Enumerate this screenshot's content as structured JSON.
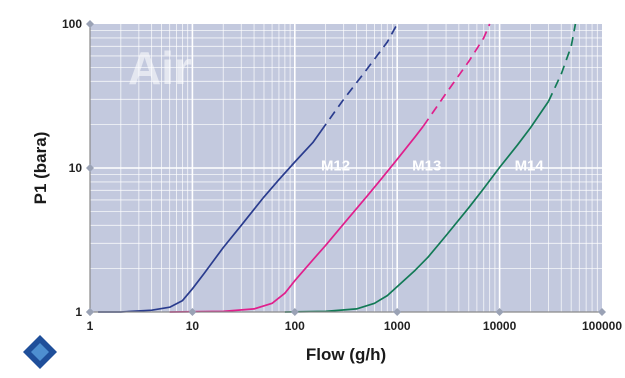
{
  "chart_data": {
    "type": "line",
    "title": "",
    "watermark_text": "Air",
    "xlabel": "Flow (g/h)",
    "ylabel": "P1 (bara)",
    "xscale": "log",
    "yscale": "log",
    "xlim": [
      1,
      100000
    ],
    "ylim": [
      1,
      100
    ],
    "grid": true,
    "legend": "none (curves labeled inline)",
    "x_ticks": [
      "1",
      "10",
      "100",
      "1000",
      "10000",
      "100000"
    ],
    "y_ticks": [
      "1",
      "10",
      "100"
    ],
    "colors": {
      "plot_background": "#c3c9de",
      "grid": "#ffffff",
      "axis": "#8a8a8a",
      "tick_marker": "#9aa2b5",
      "logo_outer": "#1f4f9a",
      "logo_inner": "#4e8fd0"
    },
    "series": [
      {
        "name": "M12",
        "color": "#2a3c8e",
        "solid": [
          [
            1.2,
            1.0
          ],
          [
            2,
            1.0
          ],
          [
            4,
            1.03
          ],
          [
            6,
            1.08
          ],
          [
            8,
            1.2
          ],
          [
            10,
            1.45
          ],
          [
            13,
            1.85
          ],
          [
            20,
            2.8
          ],
          [
            30,
            4.0
          ],
          [
            50,
            6.3
          ],
          [
            70,
            8.3
          ],
          [
            100,
            11
          ],
          [
            150,
            15
          ],
          [
            180,
            18
          ]
        ],
        "dashed": [
          [
            180,
            18
          ],
          [
            300,
            30
          ],
          [
            500,
            48
          ],
          [
            800,
            75
          ],
          [
            1000,
            100
          ]
        ]
      },
      {
        "name": "M13",
        "color": "#e01f8c",
        "solid": [
          [
            6,
            1.0
          ],
          [
            20,
            1.01
          ],
          [
            40,
            1.05
          ],
          [
            60,
            1.15
          ],
          [
            80,
            1.35
          ],
          [
            100,
            1.65
          ],
          [
            150,
            2.3
          ],
          [
            200,
            2.9
          ],
          [
            300,
            4.1
          ],
          [
            500,
            6.3
          ],
          [
            700,
            8.4
          ],
          [
            1000,
            11.5
          ],
          [
            1500,
            16.5
          ],
          [
            1800,
            19.5
          ]
        ],
        "dashed": [
          [
            1800,
            19.5
          ],
          [
            3000,
            33
          ],
          [
            5000,
            55
          ],
          [
            7000,
            80
          ],
          [
            8000,
            100
          ]
        ]
      },
      {
        "name": "M14",
        "color": "#127a56",
        "solid": [
          [
            80,
            1.0
          ],
          [
            200,
            1.01
          ],
          [
            400,
            1.05
          ],
          [
            600,
            1.15
          ],
          [
            800,
            1.3
          ],
          [
            1000,
            1.5
          ],
          [
            1500,
            1.95
          ],
          [
            2000,
            2.4
          ],
          [
            3000,
            3.4
          ],
          [
            5000,
            5.3
          ],
          [
            7000,
            7.2
          ],
          [
            10000,
            10.1
          ],
          [
            15000,
            14.5
          ],
          [
            20000,
            19
          ],
          [
            30000,
            29
          ]
        ],
        "dashed": [
          [
            30000,
            29
          ],
          [
            40000,
            45
          ],
          [
            50000,
            70
          ],
          [
            55000,
            100
          ]
        ]
      }
    ],
    "labels": [
      {
        "text": "M12",
        "x": 180,
        "y": 10.4
      },
      {
        "text": "M13",
        "x": 1400,
        "y": 10.4
      },
      {
        "text": "M14",
        "x": 14000,
        "y": 10.4
      }
    ]
  }
}
